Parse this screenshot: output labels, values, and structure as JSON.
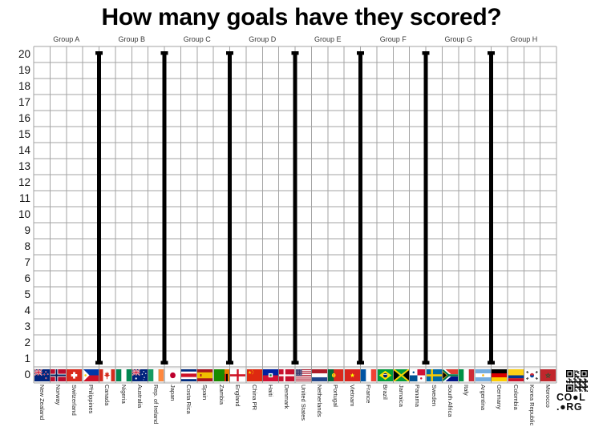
{
  "title": "How many goals have they scored?",
  "chart_data": {
    "type": "bar",
    "title": "How many goals have they scored?",
    "xlabel": "",
    "ylabel": "",
    "ylim": [
      0,
      20
    ],
    "y_ticks": [
      0,
      1,
      2,
      3,
      4,
      5,
      6,
      7,
      8,
      9,
      10,
      11,
      12,
      13,
      14,
      15,
      16,
      17,
      18,
      19,
      20
    ],
    "grid": true,
    "legend": "none",
    "series": [],
    "plotted_values": "none — blank tally grid, no goals marked yet",
    "groups": [
      {
        "label": "Group A",
        "teams": [
          {
            "name": "New Zealand",
            "flag": "new-zealand"
          },
          {
            "name": "Norway",
            "flag": "norway"
          },
          {
            "name": "Switzerland",
            "flag": "switzerland"
          },
          {
            "name": "Philippines",
            "flag": "philippines"
          }
        ]
      },
      {
        "label": "Group B",
        "teams": [
          {
            "name": "Canada",
            "flag": "canada"
          },
          {
            "name": "Nigeria",
            "flag": "nigeria"
          },
          {
            "name": "Australia",
            "flag": "australia"
          },
          {
            "name": "Rep. of Ireland",
            "flag": "ireland"
          }
        ]
      },
      {
        "label": "Group C",
        "teams": [
          {
            "name": "Japan",
            "flag": "japan"
          },
          {
            "name": "Costa Rica",
            "flag": "costa-rica"
          },
          {
            "name": "Spain",
            "flag": "spain"
          },
          {
            "name": "Zambia",
            "flag": "zambia"
          }
        ]
      },
      {
        "label": "Group D",
        "teams": [
          {
            "name": "England",
            "flag": "england"
          },
          {
            "name": "China PR",
            "flag": "china"
          },
          {
            "name": "Haiti",
            "flag": "haiti"
          },
          {
            "name": "Denmark",
            "flag": "denmark"
          }
        ]
      },
      {
        "label": "Group E",
        "teams": [
          {
            "name": "United States",
            "flag": "united-states"
          },
          {
            "name": "Netherlands",
            "flag": "netherlands"
          },
          {
            "name": "Portugal",
            "flag": "portugal"
          },
          {
            "name": "Vietnam",
            "flag": "vietnam"
          }
        ]
      },
      {
        "label": "Group F",
        "teams": [
          {
            "name": "France",
            "flag": "france"
          },
          {
            "name": "Brazil",
            "flag": "brazil"
          },
          {
            "name": "Jamaica",
            "flag": "jamaica"
          },
          {
            "name": "Panama",
            "flag": "panama"
          }
        ]
      },
      {
        "label": "Group G",
        "teams": [
          {
            "name": "Sweden",
            "flag": "sweden"
          },
          {
            "name": "South Africa",
            "flag": "south-africa"
          },
          {
            "name": "Italy",
            "flag": "italy"
          },
          {
            "name": "Argentina",
            "flag": "argentina"
          }
        ]
      },
      {
        "label": "Group H",
        "teams": [
          {
            "name": "Germany",
            "flag": "germany"
          },
          {
            "name": "Colombia",
            "flag": "colombia"
          },
          {
            "name": "Korea Republic",
            "flag": "korea-republic"
          },
          {
            "name": "Morocco",
            "flag": "morocco"
          }
        ]
      }
    ]
  },
  "branding": {
    "logo_lines": [
      "COOL",
      ".ORG"
    ],
    "qr_icon": "qr-code"
  },
  "colors": {
    "separator": "#000000",
    "gridline": "#a3a3a3",
    "title_text": "#000000"
  }
}
